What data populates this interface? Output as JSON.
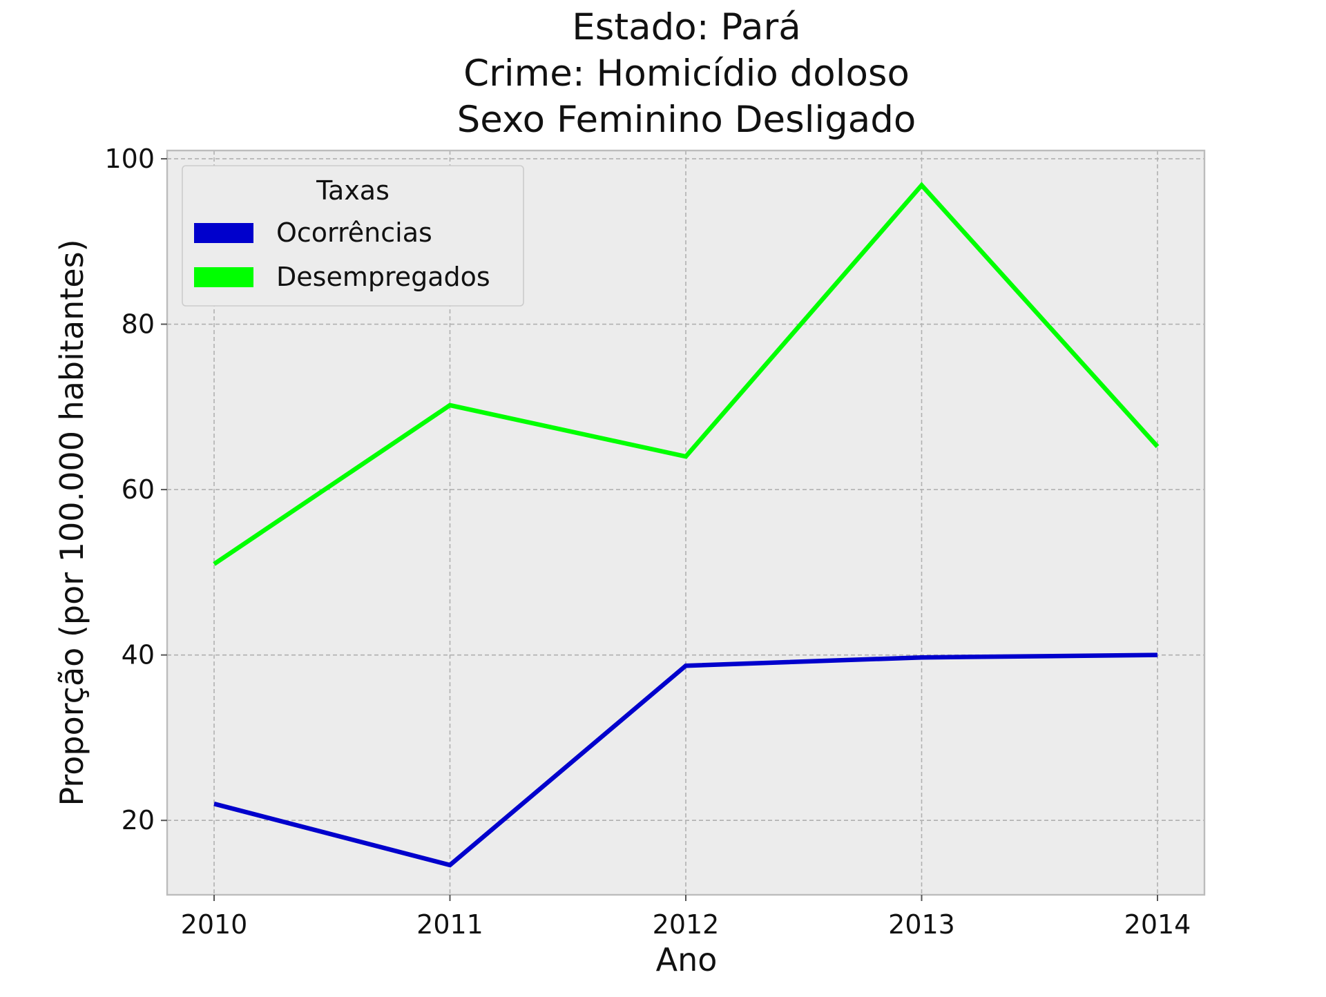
{
  "chart_data": {
    "type": "line",
    "title_lines": [
      "Estado: Pará",
      "Crime: Homicídio doloso",
      "Sexo  Feminino   Desligado"
    ],
    "xlabel": "Ano",
    "ylabel": "Proporção (por 100.000 habitantes)",
    "categories": [
      "2010",
      "2011",
      "2012",
      "2013",
      "2014"
    ],
    "yticks": [
      "20",
      "40",
      "60",
      "80",
      "100"
    ],
    "ylim": [
      11,
      101
    ],
    "grid": true,
    "legend": {
      "title": "Taxas",
      "placement": "top-left"
    },
    "series": [
      {
        "name": "Ocorrências",
        "color": "#0000cc",
        "values": [
          22.0,
          14.6,
          38.7,
          39.7,
          40.0
        ]
      },
      {
        "name": "Desempregados",
        "color": "#00ff00",
        "values": [
          51.0,
          70.2,
          64.0,
          96.8,
          65.2
        ]
      }
    ],
    "colors": {
      "plot_background": "#ececec",
      "frame": "#bcbcbc",
      "grid": "#b0b0b0"
    }
  }
}
